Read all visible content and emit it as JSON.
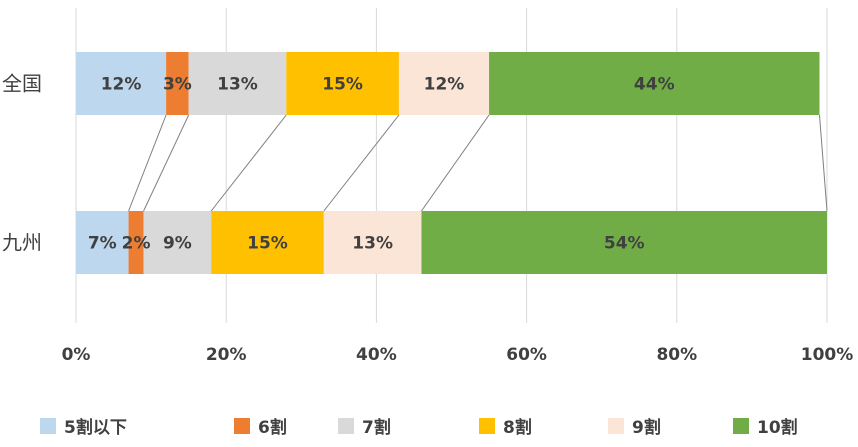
{
  "chart_data": {
    "type": "bar",
    "orientation": "horizontal",
    "stacked": "percent",
    "categories": [
      "全国",
      "九州"
    ],
    "series": [
      {
        "name": "5割以下",
        "color": "#BDD7EE",
        "values": [
          12,
          7
        ],
        "labels": [
          "12%",
          "7%"
        ]
      },
      {
        "name": "6割",
        "color": "#ED7D31",
        "values": [
          3,
          2
        ],
        "labels": [
          "3%",
          "2%"
        ]
      },
      {
        "name": "7割",
        "color": "#D9D9D9",
        "values": [
          13,
          9
        ],
        "labels": [
          "13%",
          "9%"
        ]
      },
      {
        "name": "8割",
        "color": "#FFC000",
        "values": [
          15,
          15
        ],
        "labels": [
          "15%",
          "15%"
        ]
      },
      {
        "name": "9割",
        "color": "#FBE5D6",
        "values": [
          12,
          13
        ],
        "labels": [
          "12%",
          "13%"
        ]
      },
      {
        "name": "10割",
        "color": "#70AD47",
        "values": [
          44,
          54
        ],
        "labels": [
          "44%",
          "54%"
        ]
      }
    ],
    "x_ticks": [
      "0%",
      "20%",
      "40%",
      "60%",
      "80%",
      "100%"
    ],
    "xlim": [
      0,
      100
    ],
    "grid": true,
    "series_lines": true,
    "legend": "bottom"
  }
}
